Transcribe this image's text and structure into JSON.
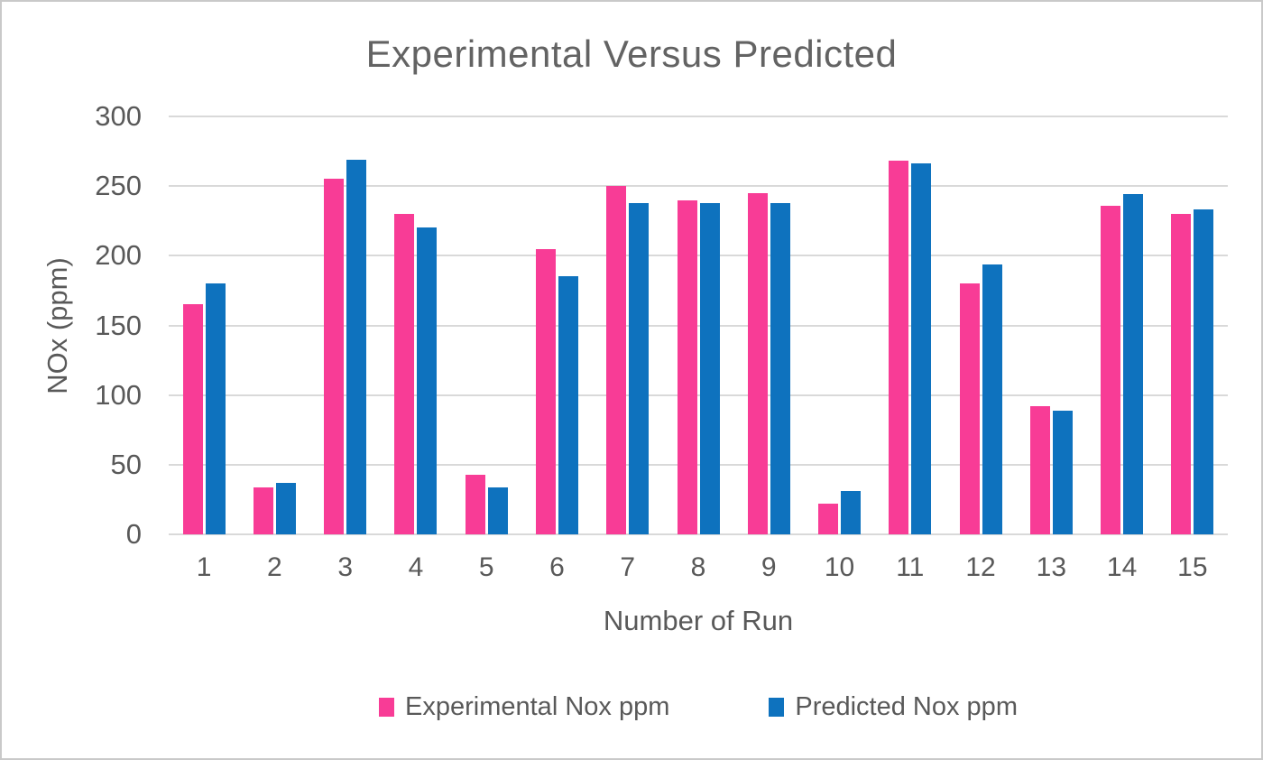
{
  "title": "Experimental Versus Predicted",
  "colors": {
    "experimental": "#F83C96",
    "predicted": "#0E72BE",
    "text": "#595959",
    "title_text": "#636363",
    "gridline": "#D9D9D9",
    "frame_border": "#C9C9C9",
    "background": "#FFFFFF"
  },
  "chart_data": {
    "type": "bar",
    "title": "Experimental Versus Predicted",
    "xlabel": "Number of Run",
    "ylabel": "NOx (ppm)",
    "categories": [
      "1",
      "2",
      "3",
      "4",
      "5",
      "6",
      "7",
      "8",
      "9",
      "10",
      "11",
      "12",
      "13",
      "14",
      "15"
    ],
    "series": [
      {
        "name": "Experimental Nox ppm",
        "color": "#F83C96",
        "values": [
          165,
          34,
          255,
          230,
          43,
          205,
          250,
          240,
          245,
          22,
          268,
          180,
          92,
          236,
          230
        ]
      },
      {
        "name": "Predicted Nox ppm",
        "color": "#0E72BE",
        "values": [
          180,
          37,
          269,
          220,
          34,
          185,
          238,
          238,
          238,
          31,
          266,
          194,
          89,
          244,
          233
        ]
      }
    ],
    "ylim": [
      0,
      300
    ],
    "ytick_interval": 50,
    "yticks": [
      0,
      50,
      100,
      150,
      200,
      250,
      300
    ],
    "grid": true,
    "legend_position": "bottom"
  }
}
